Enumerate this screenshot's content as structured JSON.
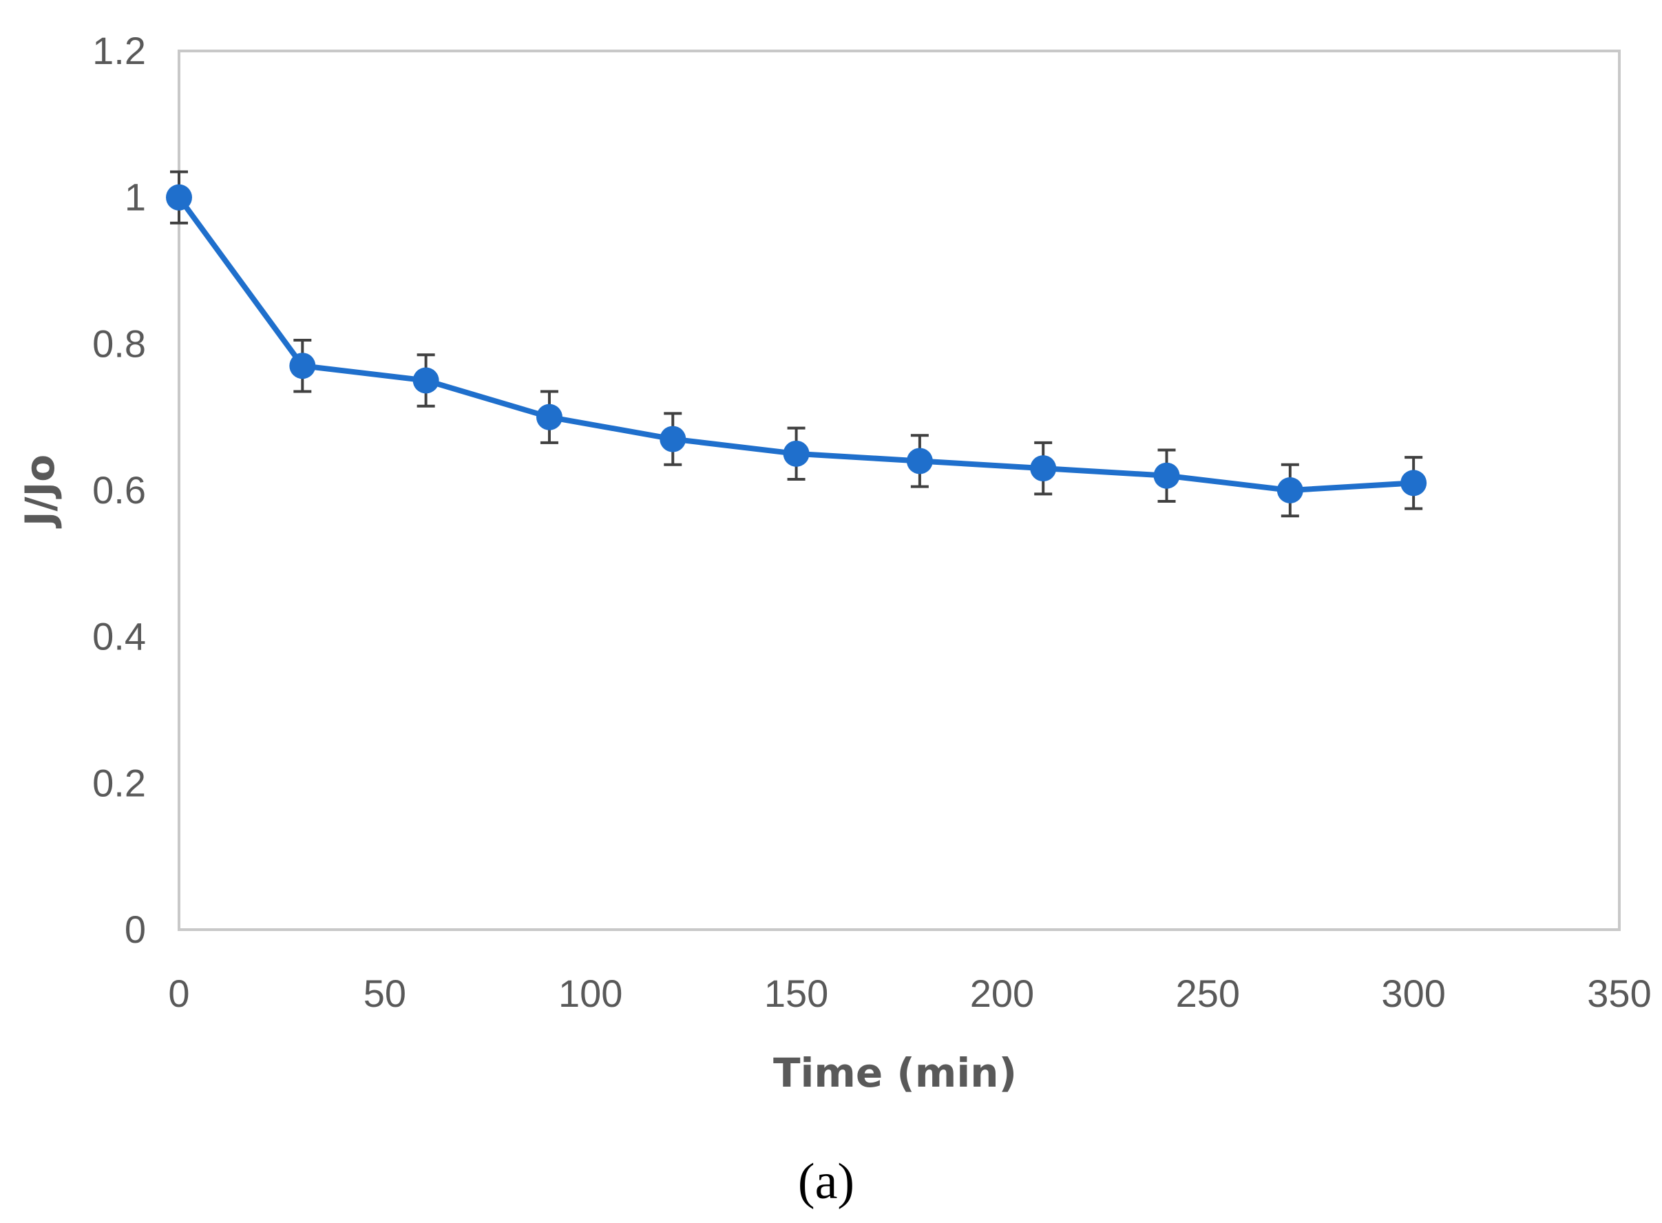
{
  "chart_data": {
    "type": "line",
    "xlabel": "Time (min)",
    "ylabel": "J/Jo",
    "caption": "(a)",
    "xlim": [
      0,
      350
    ],
    "ylim": [
      0,
      1.2
    ],
    "x_ticks": [
      "0",
      "50",
      "100",
      "150",
      "200",
      "250",
      "300",
      "350"
    ],
    "y_ticks": [
      "0",
      "0.2",
      "0.4",
      "0.6",
      "0.8",
      "1",
      "1.2"
    ],
    "grid": false,
    "legend": "none",
    "series": [
      {
        "color": "#1f6fcc",
        "x": [
          0,
          30,
          60,
          90,
          120,
          150,
          180,
          210,
          240,
          270,
          300
        ],
        "y": [
          1.0,
          0.77,
          0.75,
          0.7,
          0.67,
          0.65,
          0.64,
          0.63,
          0.62,
          0.6,
          0.61
        ],
        "error": [
          0.035,
          0.035,
          0.035,
          0.035,
          0.035,
          0.035,
          0.035,
          0.035,
          0.035,
          0.035,
          0.035
        ]
      }
    ]
  }
}
